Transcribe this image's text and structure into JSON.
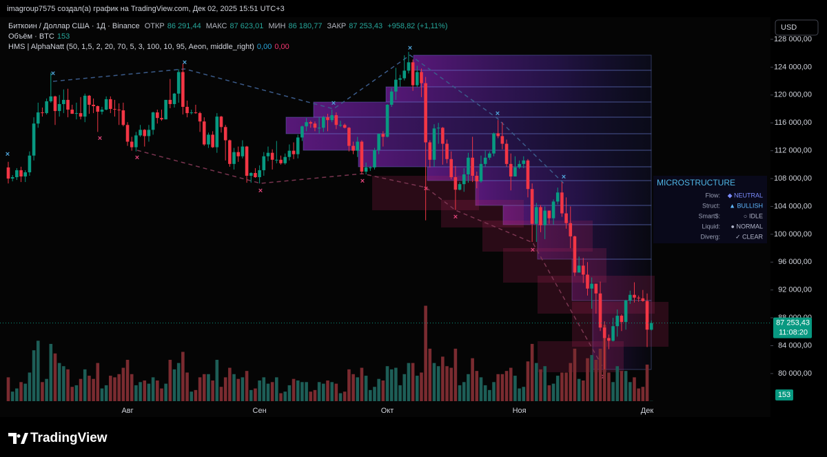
{
  "header": {
    "text": "imagroup7575 создал(а) график на TradingView.com, Дек 02, 2025 15:51 UTC+3"
  },
  "chart_data": {
    "type": "candlestick",
    "legend": {
      "symbol": "Биткоин / Доллар США · 1Д · Binance",
      "open_label": "ОТКР",
      "open": "86 291,44",
      "high_label": "МАКС",
      "high": "87 623,01",
      "low_label": "МИН",
      "low": "86 180,77",
      "close_label": "ЗАКР",
      "close": "87 253,43",
      "change": "+958,82 (+1,11%)",
      "volume_label": "Объём · BTC",
      "volume_value": "153",
      "indicator": "HMS | AlphaNatt (50, 1,5, 2, 20, 70, 5, 3, 100, 10, 95, Aeon, middle_right)",
      "indicator_value_1": "0,00",
      "indicator_value_2": "0,00"
    },
    "currency": "USD",
    "price_badge": "87 253,43",
    "countdown": "11:08:20",
    "volume_badge": "153",
    "up_color": "#089981",
    "down_color": "#f23645",
    "volume_up_color": "#1d5e57",
    "volume_down_color": "#7a2b30",
    "ylim": [
      76030,
      131170
    ],
    "yticks": [
      {
        "value": 80000,
        "label": "80 000,00"
      },
      {
        "value": 84000,
        "label": "84 000,00"
      },
      {
        "value": 88000,
        "label": "88 000,00"
      },
      {
        "value": 92000,
        "label": "92 000,00"
      },
      {
        "value": 96000,
        "label": "96 000,00"
      },
      {
        "value": 100000,
        "label": "100 000,00"
      },
      {
        "value": 104000,
        "label": "104 000,00"
      },
      {
        "value": 108000,
        "label": "108 000,00"
      },
      {
        "value": 112000,
        "label": "112 000,00"
      },
      {
        "value": 116000,
        "label": "116 000,00"
      },
      {
        "value": 120000,
        "label": "120 000,00"
      },
      {
        "value": 124000,
        "label": "124 000,00"
      },
      {
        "value": 128000,
        "label": "128 000,00"
      }
    ],
    "vlim": [
      0,
      65000
    ],
    "categories": [
      null,
      null,
      null,
      null,
      null,
      null,
      null,
      null,
      null,
      null,
      null,
      null,
      null,
      null,
      null,
      null,
      null,
      null,
      null,
      null,
      null,
      null,
      null,
      null,
      null,
      null,
      null,
      null,
      "Авг",
      null,
      null,
      null,
      null,
      null,
      null,
      null,
      null,
      null,
      null,
      null,
      null,
      null,
      null,
      null,
      null,
      null,
      null,
      null,
      null,
      null,
      null,
      null,
      null,
      null,
      null,
      null,
      null,
      null,
      null,
      "Сен",
      null,
      null,
      null,
      null,
      null,
      null,
      null,
      null,
      null,
      null,
      null,
      null,
      null,
      null,
      null,
      null,
      null,
      null,
      null,
      null,
      null,
      null,
      null,
      null,
      null,
      null,
      null,
      null,
      null,
      "Окт",
      null,
      null,
      null,
      null,
      null,
      null,
      null,
      null,
      null,
      null,
      null,
      null,
      null,
      null,
      null,
      null,
      null,
      null,
      null,
      null,
      null,
      null,
      null,
      null,
      null,
      null,
      null,
      null,
      null,
      null,
      "Ноя",
      null,
      null,
      null,
      null,
      null,
      null,
      null,
      null,
      null,
      null,
      null,
      null,
      null,
      null,
      null,
      null,
      null,
      null,
      null,
      null,
      null,
      null,
      null,
      null,
      null,
      null,
      null,
      null,
      null,
      "Дек",
      null
    ],
    "ohlc": [
      [
        109600,
        110400,
        107300,
        108000
      ],
      [
        108000,
        108500,
        107600,
        108200
      ],
      [
        108200,
        109500,
        107800,
        109200
      ],
      [
        109200,
        109700,
        107500,
        108300
      ],
      [
        108300,
        109200,
        107500,
        108900
      ],
      [
        108900,
        111900,
        108400,
        111300
      ],
      [
        111300,
        116800,
        110600,
        115900
      ],
      [
        115900,
        118900,
        115300,
        117500
      ],
      [
        117500,
        118200,
        116900,
        117400
      ],
      [
        117400,
        119500,
        117200,
        119100
      ],
      [
        119100,
        123200,
        118900,
        119800
      ],
      [
        119800,
        119900,
        115700,
        117700
      ],
      [
        117700,
        120000,
        116900,
        118700
      ],
      [
        118700,
        120800,
        117400,
        119300
      ],
      [
        119300,
        120900,
        116800,
        117900
      ],
      [
        117900,
        118600,
        117300,
        117300
      ],
      [
        117300,
        118900,
        116500,
        117400
      ],
      [
        117400,
        119700,
        116500,
        116900
      ],
      [
        116900,
        120200,
        116100,
        119900
      ],
      [
        119900,
        120000,
        117300,
        118600
      ],
      [
        118600,
        119500,
        117400,
        118400
      ],
      [
        118400,
        118500,
        114700,
        117600
      ],
      [
        117600,
        118300,
        117200,
        117900
      ],
      [
        117900,
        119800,
        117800,
        119400
      ],
      [
        119400,
        119800,
        117400,
        118000
      ],
      [
        118000,
        119300,
        116900,
        117900
      ],
      [
        117900,
        118800,
        115700,
        117800
      ],
      [
        117800,
        118900,
        115500,
        115700
      ],
      [
        115700,
        116100,
        112700,
        113300
      ],
      [
        113300,
        114000,
        112000,
        112500
      ],
      [
        112500,
        114700,
        111900,
        114200
      ],
      [
        114200,
        115700,
        114000,
        115000
      ],
      [
        115000,
        115100,
        112600,
        114100
      ],
      [
        114100,
        115700,
        113300,
        115000
      ],
      [
        115000,
        117600,
        114300,
        117500
      ],
      [
        117500,
        117900,
        115900,
        116700
      ],
      [
        116700,
        117900,
        116300,
        116500
      ],
      [
        116500,
        119300,
        116500,
        119300
      ],
      [
        119300,
        122300,
        118100,
        118700
      ],
      [
        118700,
        120300,
        118200,
        120200
      ],
      [
        120200,
        123700,
        118900,
        123300
      ],
      [
        123300,
        124500,
        117200,
        118300
      ],
      [
        118300,
        119200,
        116800,
        117400
      ],
      [
        117400,
        117900,
        117200,
        117500
      ],
      [
        117500,
        118600,
        117300,
        117400
      ],
      [
        117400,
        117600,
        114700,
        116200
      ],
      [
        116200,
        116800,
        112700,
        112900
      ],
      [
        112900,
        114600,
        112400,
        114300
      ],
      [
        114300,
        114800,
        112400,
        112500
      ],
      [
        112500,
        117400,
        111700,
        116900
      ],
      [
        116900,
        117000,
        114600,
        115400
      ],
      [
        115400,
        115700,
        110600,
        113500
      ],
      [
        113500,
        113600,
        109700,
        110100
      ],
      [
        110100,
        112400,
        109300,
        111800
      ],
      [
        111800,
        112600,
        110400,
        111200
      ],
      [
        111200,
        113500,
        110900,
        112600
      ],
      [
        112600,
        112700,
        107400,
        108400
      ],
      [
        108400,
        108900,
        107400,
        108800
      ],
      [
        108800,
        109500,
        108100,
        108200
      ],
      [
        108200,
        109900,
        107300,
        109200
      ],
      [
        109200,
        111800,
        108400,
        111200
      ],
      [
        111200,
        112600,
        110500,
        111700
      ],
      [
        111700,
        112200,
        109300,
        110700
      ],
      [
        110700,
        113400,
        110200,
        110700
      ],
      [
        110700,
        111300,
        110000,
        110200
      ],
      [
        110200,
        111600,
        110000,
        111100
      ],
      [
        111100,
        112900,
        110600,
        112000
      ],
      [
        112000,
        113200,
        110800,
        111500
      ],
      [
        111500,
        114300,
        110900,
        113900
      ],
      [
        113900,
        115600,
        113400,
        115500
      ],
      [
        115500,
        116700,
        114800,
        116100
      ],
      [
        116100,
        116300,
        115300,
        115900
      ],
      [
        115900,
        116200,
        114800,
        115300
      ],
      [
        115300,
        116800,
        114500,
        115300
      ],
      [
        115300,
        117000,
        114700,
        116800
      ],
      [
        116800,
        117300,
        114800,
        116400
      ],
      [
        116400,
        117900,
        116100,
        117100
      ],
      [
        117100,
        117500,
        115100,
        115700
      ],
      [
        115700,
        116300,
        115400,
        115700
      ],
      [
        115700,
        115900,
        115200,
        115300
      ],
      [
        115300,
        115400,
        111900,
        112700
      ],
      [
        112700,
        113300,
        111500,
        112000
      ],
      [
        112000,
        114000,
        111100,
        113300
      ],
      [
        113300,
        113500,
        108600,
        109000
      ],
      [
        109000,
        110300,
        108600,
        109600
      ],
      [
        109600,
        109800,
        109100,
        109600
      ],
      [
        109600,
        112400,
        109300,
        112100
      ],
      [
        112100,
        114500,
        111500,
        114400
      ],
      [
        114400,
        114800,
        112600,
        114000
      ],
      [
        114000,
        118700,
        113900,
        118600
      ],
      [
        118600,
        121000,
        118300,
        120500
      ],
      [
        120500,
        123900,
        119300,
        122200
      ],
      [
        122200,
        122900,
        121200,
        122400
      ],
      [
        122400,
        125700,
        122100,
        123500
      ],
      [
        123500,
        126200,
        123100,
        124700
      ],
      [
        124700,
        125100,
        120600,
        121400
      ],
      [
        121400,
        124200,
        121100,
        123300
      ],
      [
        123300,
        123800,
        119700,
        121700
      ],
      [
        121700,
        122600,
        102000,
        113200
      ],
      [
        113200,
        113500,
        109600,
        110700
      ],
      [
        110700,
        115800,
        109700,
        115200
      ],
      [
        115200,
        116000,
        113000,
        115300
      ],
      [
        115300,
        115400,
        110000,
        113000
      ],
      [
        113000,
        113600,
        110200,
        110800
      ],
      [
        110800,
        111900,
        107900,
        108200
      ],
      [
        108200,
        109800,
        103500,
        106400
      ],
      [
        106400,
        107500,
        106300,
        107200
      ],
      [
        107200,
        109500,
        106100,
        108600
      ],
      [
        108600,
        111700,
        107400,
        111000
      ],
      [
        111000,
        114000,
        107500,
        108400
      ],
      [
        108400,
        109000,
        106600,
        107600
      ],
      [
        107600,
        111300,
        107400,
        110100
      ],
      [
        110100,
        112000,
        109700,
        111000
      ],
      [
        111000,
        111900,
        110700,
        111600
      ],
      [
        111600,
        114600,
        111200,
        114500
      ],
      [
        114500,
        116400,
        113800,
        114100
      ],
      [
        114100,
        116100,
        112200,
        113000
      ],
      [
        113000,
        113600,
        109700,
        110100
      ],
      [
        110100,
        111600,
        106300,
        108300
      ],
      [
        108300,
        111200,
        108300,
        109600
      ],
      [
        109600,
        110600,
        109400,
        110100
      ],
      [
        110100,
        111200,
        109500,
        110600
      ],
      [
        110600,
        110800,
        105300,
        106500
      ],
      [
        106500,
        107300,
        98900,
        101500
      ],
      [
        101500,
        104500,
        98900,
        103900
      ],
      [
        103900,
        104200,
        100300,
        101300
      ],
      [
        101300,
        104000,
        99300,
        103400
      ],
      [
        103400,
        103400,
        101500,
        102300
      ],
      [
        102300,
        105000,
        101400,
        104700
      ],
      [
        104700,
        106700,
        104300,
        106000
      ],
      [
        106000,
        107500,
        102500,
        103000
      ],
      [
        103000,
        105300,
        100800,
        101600
      ],
      [
        101600,
        104000,
        98000,
        99700
      ],
      [
        99700,
        99800,
        94000,
        94500
      ],
      [
        94500,
        96800,
        94500,
        95500
      ],
      [
        95500,
        96600,
        93000,
        94200
      ],
      [
        94200,
        96000,
        91200,
        92200
      ],
      [
        92200,
        93800,
        89300,
        92900
      ],
      [
        92900,
        92900,
        88600,
        91500
      ],
      [
        91500,
        93200,
        86100,
        86600
      ],
      [
        86600,
        87500,
        80600,
        85100
      ],
      [
        85100,
        85600,
        83500,
        84700
      ],
      [
        84700,
        88000,
        84600,
        86800
      ],
      [
        86800,
        89200,
        85300,
        88300
      ],
      [
        88300,
        88500,
        86100,
        87400
      ],
      [
        87400,
        90600,
        86300,
        90500
      ],
      [
        90500,
        91900,
        90000,
        91300
      ],
      [
        91300,
        93100,
        90200,
        90900
      ],
      [
        90900,
        91200,
        90300,
        90800
      ],
      [
        90800,
        92000,
        90300,
        90400
      ],
      [
        90400,
        91500,
        83800,
        86300
      ],
      [
        86291.44,
        87623.01,
        86180.77,
        87253.43
      ]
    ],
    "volume": [
      15000,
      6000,
      8000,
      12000,
      11000,
      18000,
      32000,
      38000,
      12000,
      14000,
      36000,
      30000,
      24000,
      22000,
      20000,
      9000,
      10000,
      14000,
      20000,
      16000,
      14000,
      24000,
      8000,
      10000,
      16000,
      15000,
      17000,
      21000,
      26000,
      17000,
      10000,
      12000,
      13000,
      11000,
      15000,
      13000,
      8000,
      11000,
      26000,
      20000,
      24000,
      31000,
      18000,
      6000,
      7000,
      15000,
      17000,
      17000,
      13000,
      26000,
      9000,
      15000,
      21000,
      17000,
      14000,
      15000,
      19000,
      7000,
      8000,
      13000,
      15000,
      11000,
      12000,
      15000,
      5000,
      6000,
      10000,
      14000,
      13000,
      12000,
      12000,
      6000,
      7000,
      12000,
      11000,
      13000,
      12000,
      11000,
      5000,
      6000,
      20000,
      17000,
      15000,
      21000,
      16000,
      7000,
      9000,
      14000,
      13000,
      22000,
      20000,
      21000,
      10000,
      17000,
      24000,
      24000,
      16000,
      18000,
      60000,
      33000,
      24000,
      22000,
      28000,
      22000,
      21000,
      33000,
      10000,
      12000,
      17000,
      27000,
      19000,
      15000,
      10000,
      7000,
      12000,
      17000,
      17000,
      19000,
      21000,
      16000,
      8000,
      9000,
      25000,
      36000,
      24000,
      20000,
      22000,
      10000,
      11000,
      16000,
      18000,
      18000,
      24000,
      33000,
      14000,
      13000,
      27000,
      29000,
      26000,
      33000,
      48000,
      18000,
      12000,
      22000,
      19000,
      19000,
      12000,
      15000,
      8000,
      9000,
      23000,
      153
    ],
    "panel": {
      "title": "MICROSTRUCTURE",
      "rows": [
        [
          "Flow:",
          "◆ NEUTRAL"
        ],
        [
          "Struct:",
          "▲ BULLISH"
        ],
        [
          "Smart$:",
          "○ IDLE"
        ],
        [
          "Liquid:",
          "● NORMAL"
        ],
        [
          "Diverg:",
          "✓ CLEAR"
        ]
      ]
    }
  },
  "footer": {
    "brand": "TradingView"
  }
}
